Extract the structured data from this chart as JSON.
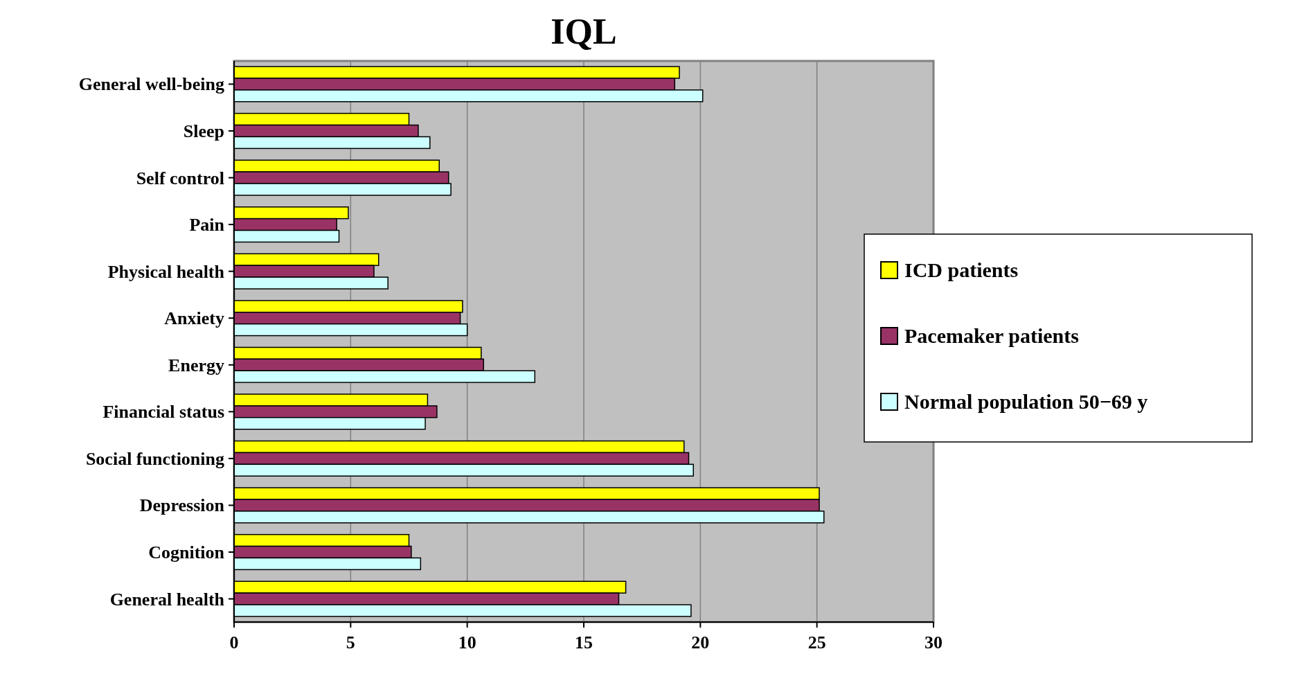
{
  "chart_data": {
    "type": "bar",
    "orientation": "horizontal",
    "title": "IQL",
    "categories": [
      "General well-being",
      "Sleep",
      "Self control",
      "Pain",
      "Physical health",
      "Anxiety",
      "Energy",
      "Financial status",
      "Social functioning",
      "Depression",
      "Cognition",
      "General health"
    ],
    "series": [
      {
        "name": "ICD patients",
        "color": "#ffff00",
        "values": [
          19.1,
          7.5,
          8.8,
          4.9,
          6.2,
          9.8,
          10.6,
          8.3,
          19.3,
          25.1,
          7.5,
          16.8
        ]
      },
      {
        "name": "Pacemaker patients",
        "color": "#993366",
        "values": [
          18.9,
          7.9,
          9.2,
          4.4,
          6.0,
          9.7,
          10.7,
          8.7,
          19.5,
          25.1,
          7.6,
          16.5
        ]
      },
      {
        "name": "Normal population 50−69 y",
        "color": "#ccffff",
        "values": [
          20.1,
          8.4,
          9.3,
          4.5,
          6.6,
          10.0,
          12.9,
          8.2,
          19.7,
          25.3,
          8.0,
          19.6
        ]
      }
    ],
    "xlim": [
      0,
      30
    ],
    "xticks": [
      0,
      5,
      10,
      15,
      20,
      25,
      30
    ],
    "grid": "x",
    "legend": "right"
  }
}
